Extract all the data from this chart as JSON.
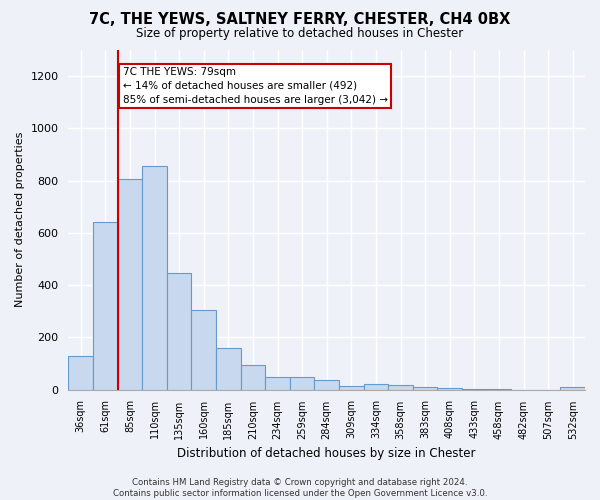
{
  "title_line1": "7C, THE YEWS, SALTNEY FERRY, CHESTER, CH4 0BX",
  "title_line2": "Size of property relative to detached houses in Chester",
  "xlabel": "Distribution of detached houses by size in Chester",
  "ylabel": "Number of detached properties",
  "categories": [
    "36sqm",
    "61sqm",
    "85sqm",
    "110sqm",
    "135sqm",
    "160sqm",
    "185sqm",
    "210sqm",
    "234sqm",
    "259sqm",
    "284sqm",
    "309sqm",
    "334sqm",
    "358sqm",
    "383sqm",
    "408sqm",
    "433sqm",
    "458sqm",
    "482sqm",
    "507sqm",
    "532sqm"
  ],
  "values": [
    130,
    640,
    805,
    855,
    445,
    305,
    158,
    95,
    50,
    48,
    35,
    15,
    20,
    18,
    10,
    5,
    3,
    2,
    0,
    0,
    10
  ],
  "bar_color": "#c8d8ee",
  "bar_edge_color": "#6699cc",
  "annotation_text": "7C THE YEWS: 79sqm\n← 14% of detached houses are smaller (492)\n85% of semi-detached houses are larger (3,042) →",
  "annotation_box_color": "#ffffff",
  "annotation_box_edge_color": "#cc0000",
  "footer_text": "Contains HM Land Registry data © Crown copyright and database right 2024.\nContains public sector information licensed under the Open Government Licence v3.0.",
  "ylim": [
    0,
    1300
  ],
  "yticks": [
    0,
    200,
    400,
    600,
    800,
    1000,
    1200
  ],
  "bg_color": "#eef2f8",
  "plot_bg_color": "#eef2f8",
  "grid_color": "#ffffff",
  "vline_color": "#cc0000",
  "vline_index": 1.5
}
